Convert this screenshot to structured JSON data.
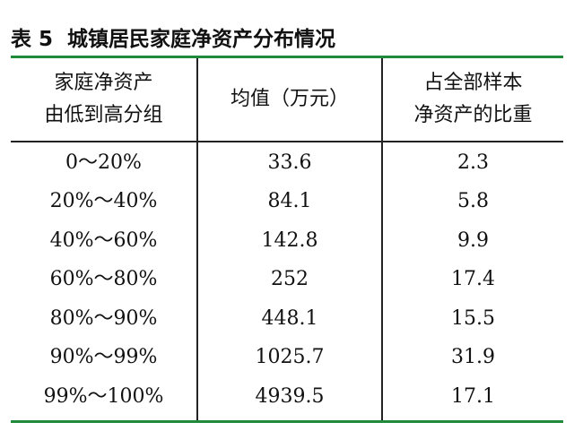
{
  "title": "表 5  城镇居民家庭净资产分布情况",
  "table": {
    "headers": [
      [
        "家庭净资产",
        "由低到高分组"
      ],
      [
        "均值（万元）"
      ],
      [
        "占全部样本",
        "净资产的比重"
      ]
    ],
    "rows": [
      [
        "0～20%",
        "33.6",
        "2.3"
      ],
      [
        "20%～40%",
        "84.1",
        "5.8"
      ],
      [
        "40%～60%",
        "142.8",
        "9.9"
      ],
      [
        "60%～80%",
        "252",
        "17.4"
      ],
      [
        "80%～90%",
        "448.1",
        "15.5"
      ],
      [
        "90%～99%",
        "1025.7",
        "31.9"
      ],
      [
        "99%～100%",
        "4939.5",
        "17.1"
      ]
    ]
  }
}
